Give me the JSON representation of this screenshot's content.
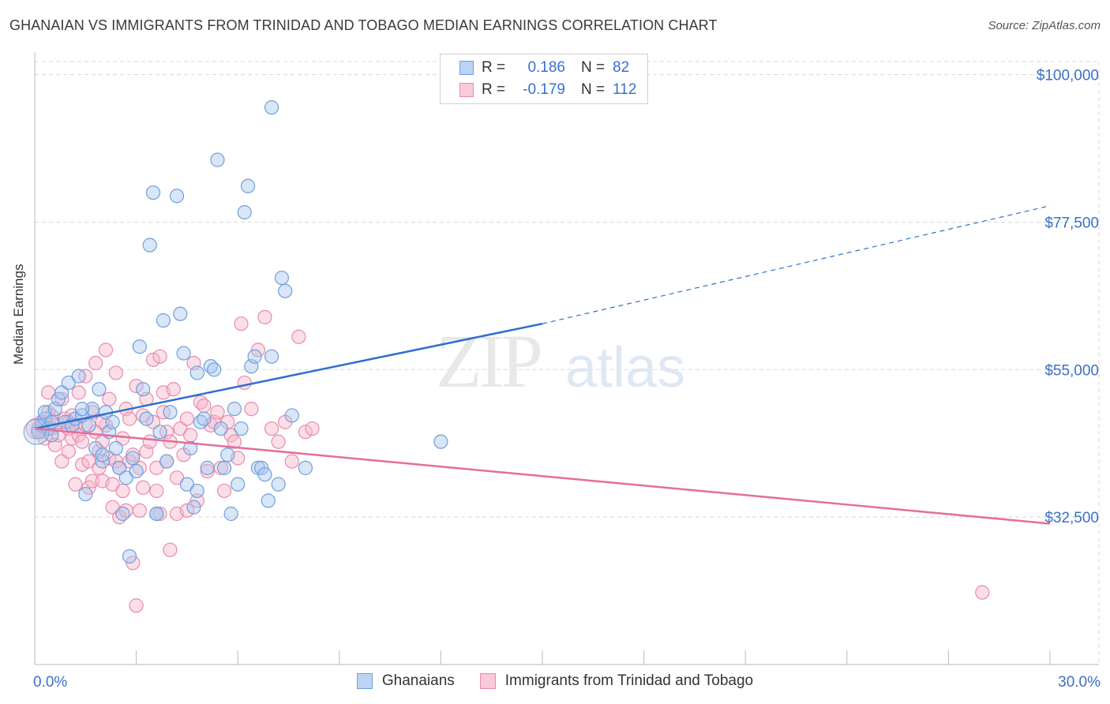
{
  "title": "GHANAIAN VS IMMIGRANTS FROM TRINIDAD AND TOBAGO MEDIAN EARNINGS CORRELATION CHART",
  "source": "Source: ZipAtlas.com",
  "watermark": {
    "zip": "ZIP",
    "atlas": "atlas"
  },
  "legend": {
    "rows": [
      {
        "r_label": "R =",
        "r_value": "0.186",
        "n_label": "N =",
        "n_value": "82"
      },
      {
        "r_label": "R =",
        "r_value": "-0.179",
        "n_label": "N =",
        "n_value": "112"
      }
    ]
  },
  "colors": {
    "blue_fill": "#a9c7ef",
    "blue_stroke": "#6f9fdc",
    "blue_line": "#2f6fcf",
    "pink_fill": "#f6b9cd",
    "pink_stroke": "#e98aab",
    "pink_line": "#e46e98",
    "tick_text": "#3b6fc8",
    "grid": "#d8d8d8"
  },
  "chart_data": {
    "type": "scatter",
    "title": "GHANAIAN VS IMMIGRANTS FROM TRINIDAD AND TOBAGO MEDIAN EARNINGS CORRELATION CHART",
    "xlabel": "",
    "ylabel": "Median Earnings",
    "x_tick_labels": [
      "0.0%",
      "30.0%"
    ],
    "y_tick_labels": [
      "$32,500",
      "$55,000",
      "$77,500",
      "$100,000"
    ],
    "y_ticks": [
      32500,
      55000,
      77500,
      100000
    ],
    "xlim": [
      0,
      30
    ],
    "ylim": [
      10000,
      102000
    ],
    "grid": true,
    "legend_position": "bottom",
    "series": [
      {
        "name": "Ghanaians",
        "trend": {
          "x": [
            0,
            15
          ],
          "y": [
            46000,
            62000
          ],
          "dashed_extension_to": [
            30,
            80000
          ]
        },
        "points": [
          [
            0.1,
            45500
          ],
          [
            0.2,
            46500
          ],
          [
            0.3,
            47500
          ],
          [
            0.3,
            48500
          ],
          [
            0.4,
            46000
          ],
          [
            0.5,
            47000
          ],
          [
            0.5,
            45000
          ],
          [
            0.6,
            49000
          ],
          [
            0.7,
            50500
          ],
          [
            0.8,
            51500
          ],
          [
            0.9,
            47000
          ],
          [
            1.0,
            53000
          ],
          [
            1.1,
            46500
          ],
          [
            1.2,
            47500
          ],
          [
            1.3,
            54000
          ],
          [
            1.4,
            48000
          ],
          [
            1.5,
            36000
          ],
          [
            1.6,
            46500
          ],
          [
            1.7,
            49000
          ],
          [
            1.8,
            43000
          ],
          [
            1.9,
            52000
          ],
          [
            2.0,
            41000
          ],
          [
            2.1,
            48500
          ],
          [
            2.2,
            45500
          ],
          [
            2.3,
            47000
          ],
          [
            2.4,
            43000
          ],
          [
            2.5,
            40000
          ],
          [
            2.6,
            33000
          ],
          [
            2.7,
            38500
          ],
          [
            2.8,
            26500
          ],
          [
            2.9,
            41500
          ],
          [
            3.0,
            39500
          ],
          [
            3.1,
            58500
          ],
          [
            3.2,
            52000
          ],
          [
            3.3,
            47500
          ],
          [
            3.4,
            74000
          ],
          [
            3.5,
            82000
          ],
          [
            3.6,
            33000
          ],
          [
            3.7,
            45500
          ],
          [
            3.8,
            62500
          ],
          [
            3.9,
            41000
          ],
          [
            4.0,
            48500
          ],
          [
            4.2,
            81500
          ],
          [
            4.3,
            63500
          ],
          [
            4.4,
            57500
          ],
          [
            4.5,
            37500
          ],
          [
            4.6,
            43000
          ],
          [
            4.7,
            34000
          ],
          [
            4.8,
            54500
          ],
          [
            4.9,
            47000
          ],
          [
            5.0,
            47500
          ],
          [
            5.1,
            40000
          ],
          [
            5.2,
            55500
          ],
          [
            5.3,
            55000
          ],
          [
            5.4,
            87000
          ],
          [
            5.5,
            46000
          ],
          [
            5.6,
            40000
          ],
          [
            5.7,
            42000
          ],
          [
            5.8,
            33000
          ],
          [
            5.9,
            49000
          ],
          [
            6.0,
            37500
          ],
          [
            6.1,
            46000
          ],
          [
            6.2,
            79000
          ],
          [
            6.3,
            83000
          ],
          [
            6.4,
            55500
          ],
          [
            6.5,
            57000
          ],
          [
            6.6,
            40000
          ],
          [
            6.7,
            40000
          ],
          [
            6.8,
            39000
          ],
          [
            6.9,
            35000
          ],
          [
            7.0,
            57000
          ],
          [
            7.2,
            37500
          ],
          [
            7.3,
            69000
          ],
          [
            7.4,
            67000
          ],
          [
            7.6,
            48000
          ],
          [
            8.0,
            40000
          ],
          [
            7.0,
            95000
          ],
          [
            12.0,
            44000
          ],
          [
            3.6,
            33000
          ],
          [
            4.8,
            36500
          ],
          [
            2.0,
            42000
          ],
          [
            1.4,
            49000
          ]
        ]
      },
      {
        "name": "Immigrants from Trinidad and Tobago",
        "trend": {
          "x": [
            0,
            30
          ],
          "y": [
            46000,
            31500
          ]
        },
        "points": [
          [
            0.1,
            46000
          ],
          [
            0.2,
            45500
          ],
          [
            0.2,
            47000
          ],
          [
            0.3,
            44500
          ],
          [
            0.4,
            51500
          ],
          [
            0.5,
            46000
          ],
          [
            0.5,
            48000
          ],
          [
            0.6,
            43500
          ],
          [
            0.6,
            46500
          ],
          [
            0.7,
            45000
          ],
          [
            0.8,
            41000
          ],
          [
            0.8,
            50500
          ],
          [
            0.9,
            47500
          ],
          [
            1.0,
            46000
          ],
          [
            1.0,
            42500
          ],
          [
            1.1,
            44500
          ],
          [
            1.1,
            48000
          ],
          [
            1.2,
            37500
          ],
          [
            1.2,
            46500
          ],
          [
            1.3,
            45000
          ],
          [
            1.3,
            51500
          ],
          [
            1.4,
            40500
          ],
          [
            1.4,
            44000
          ],
          [
            1.5,
            54000
          ],
          [
            1.5,
            46500
          ],
          [
            1.6,
            41000
          ],
          [
            1.6,
            37000
          ],
          [
            1.7,
            38000
          ],
          [
            1.7,
            48500
          ],
          [
            1.8,
            45500
          ],
          [
            1.8,
            56000
          ],
          [
            1.9,
            40000
          ],
          [
            1.9,
            42500
          ],
          [
            2.0,
            44000
          ],
          [
            2.0,
            38000
          ],
          [
            2.1,
            58000
          ],
          [
            2.1,
            46500
          ],
          [
            2.2,
            50500
          ],
          [
            2.2,
            41500
          ],
          [
            2.3,
            37500
          ],
          [
            2.3,
            34000
          ],
          [
            2.4,
            54500
          ],
          [
            2.4,
            41000
          ],
          [
            2.5,
            32500
          ],
          [
            2.5,
            40000
          ],
          [
            2.6,
            36500
          ],
          [
            2.6,
            44500
          ],
          [
            2.7,
            33500
          ],
          [
            2.7,
            49000
          ],
          [
            2.8,
            47500
          ],
          [
            2.8,
            41000
          ],
          [
            2.9,
            25500
          ],
          [
            2.9,
            42000
          ],
          [
            3.0,
            19000
          ],
          [
            3.0,
            52500
          ],
          [
            3.1,
            33500
          ],
          [
            3.1,
            40000
          ],
          [
            3.2,
            48000
          ],
          [
            3.2,
            37000
          ],
          [
            3.3,
            42500
          ],
          [
            3.3,
            50500
          ],
          [
            3.4,
            44000
          ],
          [
            3.5,
            56500
          ],
          [
            3.5,
            47000
          ],
          [
            3.6,
            40000
          ],
          [
            3.6,
            36500
          ],
          [
            3.7,
            33000
          ],
          [
            3.7,
            57000
          ],
          [
            3.8,
            48500
          ],
          [
            3.8,
            51500
          ],
          [
            3.9,
            45500
          ],
          [
            3.9,
            41000
          ],
          [
            4.0,
            27500
          ],
          [
            4.0,
            44000
          ],
          [
            4.1,
            52000
          ],
          [
            4.2,
            33000
          ],
          [
            4.2,
            38500
          ],
          [
            4.3,
            46000
          ],
          [
            4.4,
            42000
          ],
          [
            4.5,
            47500
          ],
          [
            4.5,
            33500
          ],
          [
            4.6,
            45000
          ],
          [
            4.7,
            56000
          ],
          [
            4.8,
            35000
          ],
          [
            4.9,
            50000
          ],
          [
            5.0,
            49500
          ],
          [
            5.1,
            39500
          ],
          [
            5.2,
            46500
          ],
          [
            5.3,
            47000
          ],
          [
            5.4,
            48500
          ],
          [
            5.5,
            40000
          ],
          [
            5.6,
            36500
          ],
          [
            5.7,
            47000
          ],
          [
            5.8,
            45000
          ],
          [
            5.9,
            44000
          ],
          [
            6.0,
            41500
          ],
          [
            6.1,
            62000
          ],
          [
            6.2,
            53000
          ],
          [
            6.4,
            49000
          ],
          [
            6.6,
            58000
          ],
          [
            6.8,
            63000
          ],
          [
            7.0,
            46000
          ],
          [
            7.2,
            44000
          ],
          [
            7.4,
            47000
          ],
          [
            7.6,
            41000
          ],
          [
            7.8,
            60000
          ],
          [
            8.0,
            45500
          ],
          [
            8.2,
            46000
          ],
          [
            28.0,
            21000
          ],
          [
            0.4,
            48500
          ],
          [
            1.0,
            47000
          ],
          [
            2.0,
            47000
          ]
        ]
      }
    ]
  }
}
